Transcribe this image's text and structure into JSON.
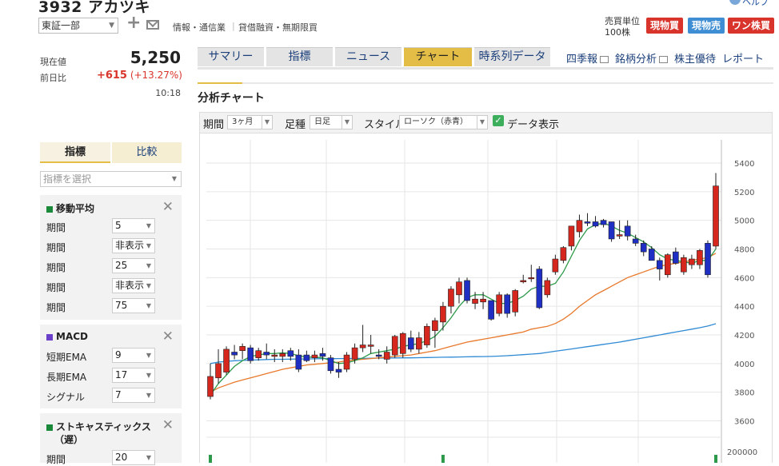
{
  "header": {
    "title": "3932 アカツキ",
    "help": "ヘルプ",
    "market": "東証一部",
    "sector": "情報・通信業",
    "credit": "貸借融資・無期限買",
    "unit_label": "売買単位",
    "unit_value": "100株",
    "buttons": {
      "cash_buy": "現物買",
      "cash_sell": "現物売",
      "one_share": "ワン株買"
    }
  },
  "quote": {
    "current_label": "現在値",
    "current_value": "5,250",
    "prev_label": "前日比",
    "change": "+615",
    "change_pct": "(+13.27%)",
    "time": "10:18"
  },
  "tabs": [
    {
      "label": "サマリー"
    },
    {
      "label": "指標"
    },
    {
      "label": "ニュース"
    },
    {
      "label": "チャート",
      "active": true
    },
    {
      "label": "時系列データ"
    }
  ],
  "links": {
    "quarterly": "四季報",
    "analysis": "銘柄分析",
    "benefit": "株主優待",
    "report": "レポート"
  },
  "section_title": "分析チャート",
  "controls": {
    "period_label": "期間",
    "period_value": "3ヶ月",
    "foot_label": "足種",
    "foot_value": "日足",
    "style_label": "スタイル",
    "style_value": "ローソク（赤青）",
    "data_label": "データ表示",
    "data_checked": true
  },
  "sidebar": {
    "tab_indicator": "指標",
    "tab_compare": "比較",
    "select_placeholder": "指標を選択",
    "ma": {
      "title": "移動平均",
      "color": "#1a8a3a",
      "rows": [
        {
          "label": "期間",
          "value": "5"
        },
        {
          "label": "期間",
          "value": "非表示"
        },
        {
          "label": "期間",
          "value": "25"
        },
        {
          "label": "期間",
          "value": "非表示"
        },
        {
          "label": "期間",
          "value": "75"
        }
      ]
    },
    "macd": {
      "title": "MACD",
      "color": "#6a3fc9",
      "rows": [
        {
          "label": "短期EMA",
          "value": "9"
        },
        {
          "label": "長期EMA",
          "value": "17"
        },
        {
          "label": "シグナル",
          "value": "7"
        }
      ]
    },
    "stoch": {
      "title": "ストキャスティックス",
      "subtitle": "（遅）",
      "color": "#1a8a3a",
      "rows": [
        {
          "label": "期間",
          "value": "20"
        }
      ]
    }
  },
  "chart_data": {
    "type": "candlestick",
    "yticks": [
      3600,
      3800,
      4000,
      4200,
      4400,
      4600,
      4800,
      5000,
      5200,
      5400
    ],
    "ylim": [
      3500,
      5500
    ],
    "volume_tick": "200000",
    "candles": [
      {
        "o": 3770,
        "h": 4000,
        "l": 3750,
        "c": 3910
      },
      {
        "o": 3900,
        "h": 4100,
        "l": 3860,
        "c": 4000
      },
      {
        "o": 3940,
        "h": 4120,
        "l": 3920,
        "c": 4100
      },
      {
        "o": 4080,
        "h": 4130,
        "l": 4030,
        "c": 4060
      },
      {
        "o": 4090,
        "h": 4140,
        "l": 4030,
        "c": 4120
      },
      {
        "o": 4110,
        "h": 4130,
        "l": 4000,
        "c": 4020
      },
      {
        "o": 4040,
        "h": 4110,
        "l": 4020,
        "c": 4090
      },
      {
        "o": 4080,
        "h": 4140,
        "l": 4030,
        "c": 4060
      },
      {
        "o": 4050,
        "h": 4100,
        "l": 4010,
        "c": 4060
      },
      {
        "o": 4050,
        "h": 4100,
        "l": 4010,
        "c": 4070
      },
      {
        "o": 4090,
        "h": 4110,
        "l": 4020,
        "c": 4050
      },
      {
        "o": 4060,
        "h": 4100,
        "l": 3940,
        "c": 3960
      },
      {
        "o": 4060,
        "h": 4090,
        "l": 4010,
        "c": 4020
      },
      {
        "o": 4040,
        "h": 4090,
        "l": 4010,
        "c": 4060
      },
      {
        "o": 4070,
        "h": 4110,
        "l": 4020,
        "c": 4050
      },
      {
        "o": 4040,
        "h": 4060,
        "l": 3930,
        "c": 3950
      },
      {
        "o": 3960,
        "h": 4010,
        "l": 3900,
        "c": 3940
      },
      {
        "o": 3960,
        "h": 4080,
        "l": 3940,
        "c": 4060
      },
      {
        "o": 4030,
        "h": 4140,
        "l": 4000,
        "c": 4110
      },
      {
        "o": 4110,
        "h": 4270,
        "l": 4080,
        "c": 4130
      },
      {
        "o": 4120,
        "h": 4200,
        "l": 4070,
        "c": 4130
      },
      {
        "o": 4060,
        "h": 4100,
        "l": 4030,
        "c": 4050
      },
      {
        "o": 4030,
        "h": 4120,
        "l": 4000,
        "c": 4080
      },
      {
        "o": 4060,
        "h": 4200,
        "l": 4040,
        "c": 4190
      },
      {
        "o": 4070,
        "h": 4220,
        "l": 4040,
        "c": 4210
      },
      {
        "o": 4180,
        "h": 4230,
        "l": 4080,
        "c": 4100
      },
      {
        "o": 4100,
        "h": 4220,
        "l": 4070,
        "c": 4180
      },
      {
        "o": 4130,
        "h": 4280,
        "l": 4110,
        "c": 4260
      },
      {
        "o": 4230,
        "h": 4320,
        "l": 4110,
        "c": 4300
      },
      {
        "o": 4290,
        "h": 4430,
        "l": 4230,
        "c": 4400
      },
      {
        "o": 4400,
        "h": 4540,
        "l": 4350,
        "c": 4520
      },
      {
        "o": 4480,
        "h": 4600,
        "l": 4420,
        "c": 4570
      },
      {
        "o": 4580,
        "h": 4600,
        "l": 4420,
        "c": 4440
      },
      {
        "o": 4420,
        "h": 4500,
        "l": 4380,
        "c": 4450
      },
      {
        "o": 4430,
        "h": 4500,
        "l": 4380,
        "c": 4450
      },
      {
        "o": 4440,
        "h": 4440,
        "l": 4300,
        "c": 4310
      },
      {
        "o": 4350,
        "h": 4500,
        "l": 4330,
        "c": 4480
      },
      {
        "o": 4480,
        "h": 4490,
        "l": 4320,
        "c": 4350
      },
      {
        "o": 4360,
        "h": 4520,
        "l": 4330,
        "c": 4510
      },
      {
        "o": 4570,
        "h": 4620,
        "l": 4560,
        "c": 4580
      },
      {
        "o": 4600,
        "h": 4690,
        "l": 4570,
        "c": 4600
      },
      {
        "o": 4660,
        "h": 4680,
        "l": 4380,
        "c": 4390
      },
      {
        "o": 4480,
        "h": 4600,
        "l": 4460,
        "c": 4580
      },
      {
        "o": 4640,
        "h": 4760,
        "l": 4620,
        "c": 4730
      },
      {
        "o": 4720,
        "h": 4820,
        "l": 4700,
        "c": 4810
      },
      {
        "o": 4820,
        "h": 4960,
        "l": 4790,
        "c": 4960
      },
      {
        "o": 4920,
        "h": 5040,
        "l": 4880,
        "c": 5000
      },
      {
        "o": 4990,
        "h": 5050,
        "l": 4960,
        "c": 4980
      },
      {
        "o": 4990,
        "h": 5030,
        "l": 4950,
        "c": 4960
      },
      {
        "o": 5000,
        "h": 5010,
        "l": 4950,
        "c": 4970
      },
      {
        "o": 4990,
        "h": 4990,
        "l": 4850,
        "c": 4870
      },
      {
        "o": 4890,
        "h": 5000,
        "l": 4870,
        "c": 4900
      },
      {
        "o": 4960,
        "h": 5000,
        "l": 4860,
        "c": 4890
      },
      {
        "o": 4870,
        "h": 4900,
        "l": 4820,
        "c": 4840
      },
      {
        "o": 4840,
        "h": 4860,
        "l": 4750,
        "c": 4780
      },
      {
        "o": 4800,
        "h": 4820,
        "l": 4720,
        "c": 4720
      },
      {
        "o": 4720,
        "h": 4740,
        "l": 4580,
        "c": 4660
      },
      {
        "o": 4620,
        "h": 4770,
        "l": 4600,
        "c": 4760
      },
      {
        "o": 4780,
        "h": 4810,
        "l": 4690,
        "c": 4700
      },
      {
        "o": 4640,
        "h": 4760,
        "l": 4620,
        "c": 4740
      },
      {
        "o": 4690,
        "h": 4760,
        "l": 4660,
        "c": 4730
      },
      {
        "o": 4690,
        "h": 4800,
        "l": 4660,
        "c": 4790
      },
      {
        "o": 4840,
        "h": 4860,
        "l": 4600,
        "c": 4620
      },
      {
        "o": 4820,
        "h": 5330,
        "l": 4800,
        "c": 5240
      }
    ],
    "ma5": [
      3780,
      3860,
      3920,
      3980,
      4020,
      4050,
      4060,
      4070,
      4070,
      4075,
      4070,
      4055,
      4045,
      4045,
      4040,
      4020,
      4000,
      4005,
      4020,
      4040,
      4070,
      4080,
      4090,
      4100,
      4120,
      4130,
      4140,
      4160,
      4190,
      4250,
      4320,
      4400,
      4460,
      4480,
      4480,
      4450,
      4420,
      4420,
      4440,
      4470,
      4520,
      4540,
      4540,
      4560,
      4640,
      4750,
      4860,
      4940,
      4970,
      4980,
      4960,
      4930,
      4910,
      4880,
      4850,
      4810,
      4760,
      4730,
      4720,
      4710,
      4700,
      4720,
      4720,
      4800
    ],
    "ma25": [
      3800,
      3830,
      3850,
      3870,
      3885,
      3900,
      3915,
      3930,
      3945,
      3960,
      3970,
      3980,
      3990,
      3995,
      4000,
      4005,
      4010,
      4020,
      4025,
      4030,
      4035,
      4040,
      4045,
      4050,
      4055,
      4060,
      4070,
      4080,
      4090,
      4105,
      4120,
      4135,
      4150,
      4160,
      4170,
      4180,
      4190,
      4200,
      4210,
      4220,
      4240,
      4250,
      4260,
      4280,
      4310,
      4350,
      4400,
      4440,
      4480,
      4510,
      4540,
      4570,
      4600,
      4620,
      4640,
      4660,
      4680,
      4690,
      4700,
      4710,
      4720,
      4730,
      4740,
      4770
    ],
    "ma75": [
      4000,
      4010,
      4015,
      4020,
      4022,
      4024,
      4026,
      4028,
      4030,
      4030,
      4031,
      4032,
      4032,
      4033,
      4034,
      4034,
      4035,
      4035,
      4036,
      4036,
      4037,
      4038,
      4038,
      4039,
      4040,
      4040,
      4041,
      4042,
      4043,
      4044,
      4045,
      4046,
      4047,
      4048,
      4049,
      4050,
      4052,
      4055,
      4058,
      4062,
      4066,
      4070,
      4078,
      4086,
      4094,
      4102,
      4110,
      4118,
      4126,
      4134,
      4142,
      4150,
      4160,
      4170,
      4180,
      4190,
      4200,
      4210,
      4220,
      4230,
      4240,
      4250,
      4262,
      4278
    ],
    "volume": [
      {
        "i": 0
      },
      {
        "i": 29
      },
      {
        "i": 63
      }
    ]
  }
}
